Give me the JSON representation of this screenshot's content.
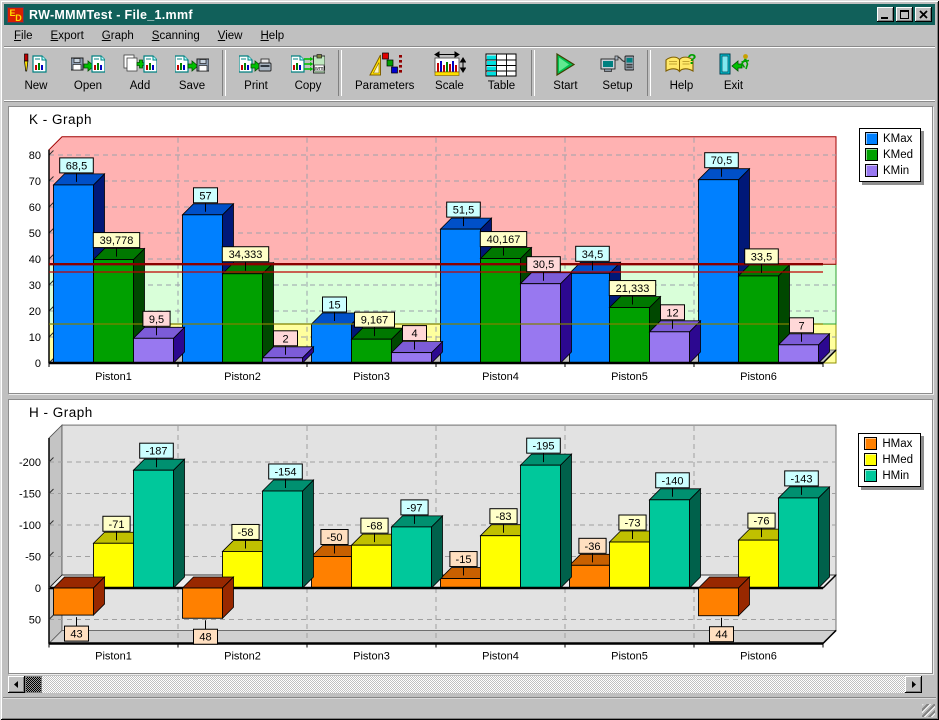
{
  "window": {
    "title": "RW-MMMTest - File_1.mmf",
    "icon_letters": {
      "top": "E",
      "bottom": "D"
    }
  },
  "menu": {
    "items": [
      "File",
      "Export",
      "Graph",
      "Scanning",
      "View",
      "Help"
    ]
  },
  "toolbar": {
    "groups": [
      [
        {
          "label": "New",
          "icon": "new-icon"
        },
        {
          "label": "Open",
          "icon": "open-icon"
        },
        {
          "label": "Add",
          "icon": "add-icon"
        },
        {
          "label": "Save",
          "icon": "save-icon"
        }
      ],
      [
        {
          "label": "Print",
          "icon": "print-icon"
        },
        {
          "label": "Copy",
          "icon": "copy-icon"
        }
      ],
      [
        {
          "label": "Parameters",
          "icon": "parameters-icon"
        },
        {
          "label": "Scale",
          "icon": "scale-icon"
        },
        {
          "label": "Table",
          "icon": "table-icon"
        }
      ],
      [
        {
          "label": "Start",
          "icon": "start-icon"
        },
        {
          "label": "Setup",
          "icon": "setup-icon"
        }
      ],
      [
        {
          "label": "Help",
          "icon": "help-icon"
        },
        {
          "label": "Exit",
          "icon": "exit-icon"
        }
      ]
    ]
  },
  "k_graph": {
    "title": "K - Graph",
    "title_color": "#000080",
    "legend": [
      {
        "label": "KMax",
        "color": "#0080FF"
      },
      {
        "label": "KMed",
        "color": "#00A000"
      },
      {
        "label": "KMin",
        "color": "#9878F0"
      }
    ]
  },
  "h_graph": {
    "title": "H - Graph",
    "title_color": "#800000",
    "legend": [
      {
        "label": "HMax",
        "color": "#FF8000"
      },
      {
        "label": "HMed",
        "color": "#FFFF00"
      },
      {
        "label": "HMin",
        "color": "#00C89B"
      }
    ]
  },
  "chart_data": [
    {
      "id": "k",
      "type": "bar",
      "title": "K - Graph",
      "categories": [
        "Piston1",
        "Piston2",
        "Piston3",
        "Piston4",
        "Piston5",
        "Piston6"
      ],
      "series": [
        {
          "name": "KMax",
          "color": "#0080FF",
          "color_top": "#0050C8",
          "color_side": "#001878",
          "label_bg": "#CCFFFF",
          "values": [
            68.5,
            57,
            15,
            51.5,
            34.5,
            70.5
          ],
          "labels": [
            "68,5",
            "57",
            "15",
            "51,5",
            "34,5",
            "70,5"
          ]
        },
        {
          "name": "KMed",
          "color": "#00A000",
          "color_top": "#007800",
          "color_side": "#004800",
          "label_bg": "#FFFFC8",
          "values": [
            39.778,
            34.333,
            9.167,
            40.167,
            21.333,
            33.5
          ],
          "labels": [
            "39,778",
            "34,333",
            "9,167",
            "40,167",
            "21,333",
            "33,5"
          ]
        },
        {
          "name": "KMin",
          "color": "#9878F0",
          "color_top": "#7C5CD8",
          "color_side": "#2C0890",
          "label_bg": "#FFD8D8",
          "values": [
            9.5,
            2,
            4,
            30.5,
            12,
            7
          ],
          "labels": [
            "9,5",
            "2",
            "4",
            "30,5",
            "12",
            "7"
          ]
        }
      ],
      "ylim": [
        0,
        82
      ],
      "yticks": [
        0,
        10,
        20,
        30,
        40,
        50,
        60,
        70,
        80
      ],
      "grid": true,
      "legend_position": "top-right",
      "zones": [
        {
          "from": 0,
          "to": 15,
          "color": "#FFFF9E",
          "border": "#909000"
        },
        {
          "from": 15,
          "to": 38,
          "color": "#D9FFD9",
          "border": "#30A030"
        },
        {
          "from": 38,
          "to": 82,
          "color": "#FFB2B2",
          "border": "#A00000"
        }
      ],
      "ref_lines": [
        {
          "value": 38,
          "color": "#8B0000",
          "width": 2.4
        },
        {
          "value": 35,
          "color": "#C00000",
          "width": 1.3
        },
        {
          "value": 15,
          "color": "#808000",
          "width": 1.3
        }
      ]
    },
    {
      "id": "h",
      "type": "bar",
      "title": "H - Graph",
      "categories": [
        "Piston1",
        "Piston2",
        "Piston3",
        "Piston4",
        "Piston5",
        "Piston6"
      ],
      "series": [
        {
          "name": "HMax",
          "color": "#FF8000",
          "color_top": "#C86000",
          "color_side": "#982800",
          "label_bg": "#FFDFC0",
          "values": [
            43,
            48,
            -50,
            -15,
            -36,
            44
          ],
          "labels": [
            "43",
            "48",
            "-50",
            "-15",
            "-36",
            "44"
          ]
        },
        {
          "name": "HMed",
          "color": "#FFFF00",
          "color_top": "#C0C000",
          "color_side": "#787800",
          "label_bg": "#FFFFC8",
          "values": [
            -71,
            -58,
            -68,
            -83,
            -73,
            -76
          ],
          "labels": [
            "-71",
            "-58",
            "-68",
            "-83",
            "-73",
            "-76"
          ]
        },
        {
          "name": "HMin",
          "color": "#00C89B",
          "color_top": "#009070",
          "color_side": "#00614B",
          "label_bg": "#CCFFFF",
          "values": [
            -187,
            -154,
            -97,
            -195,
            -140,
            -143
          ],
          "labels": [
            "-187",
            "-154",
            "-97",
            "-195",
            "-140",
            "-143"
          ]
        }
      ],
      "ylim": [
        -238,
        88
      ],
      "yticks": [
        -200,
        -150,
        -100,
        -50,
        0,
        50
      ],
      "inverted_axis": true,
      "grid": true,
      "legend_position": "top-right"
    }
  ]
}
